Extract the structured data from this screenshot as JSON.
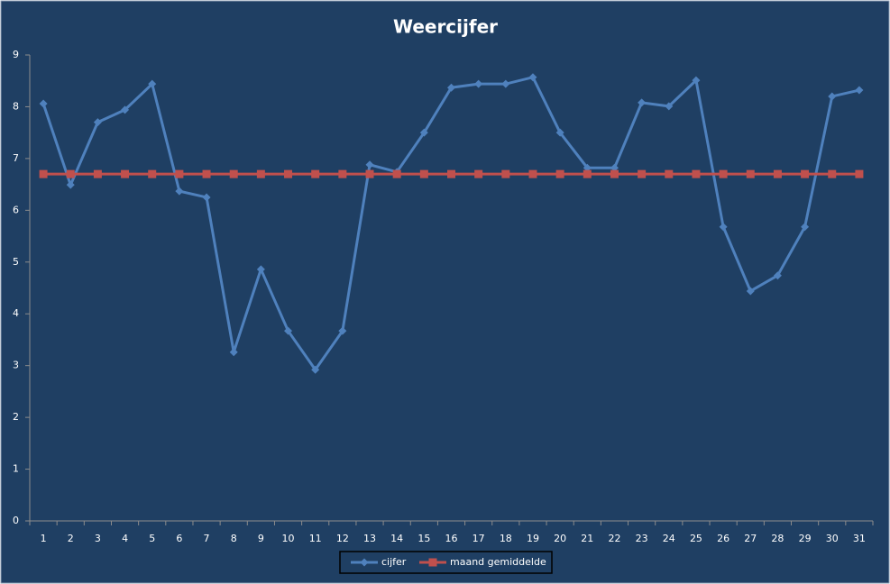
{
  "chart_data": {
    "type": "line",
    "title": "Weercijfer",
    "categories": [
      "1",
      "2",
      "3",
      "4",
      "5",
      "6",
      "7",
      "8",
      "9",
      "10",
      "11",
      "12",
      "13",
      "14",
      "15",
      "16",
      "17",
      "18",
      "19",
      "20",
      "21",
      "22",
      "23",
      "24",
      "25",
      "26",
      "27",
      "28",
      "29",
      "30",
      "31"
    ],
    "series": [
      {
        "name": "cijfer",
        "color": "#4f81bd",
        "marker": "diamond",
        "values": [
          8.06,
          6.49,
          7.7,
          7.94,
          8.44,
          6.37,
          6.25,
          3.26,
          4.86,
          3.67,
          2.92,
          3.67,
          6.88,
          6.74,
          7.5,
          8.37,
          8.44,
          8.44,
          8.57,
          7.5,
          6.82,
          6.82,
          8.08,
          8.01,
          8.51,
          5.68,
          4.44,
          4.74,
          5.68,
          8.2,
          8.32
        ]
      },
      {
        "name": "maand gemiddelde",
        "color": "#c0504d",
        "marker": "square",
        "values": [
          6.7,
          6.7,
          6.7,
          6.7,
          6.7,
          6.7,
          6.7,
          6.7,
          6.7,
          6.7,
          6.7,
          6.7,
          6.7,
          6.7,
          6.7,
          6.7,
          6.7,
          6.7,
          6.7,
          6.7,
          6.7,
          6.7,
          6.7,
          6.7,
          6.7,
          6.7,
          6.7,
          6.7,
          6.7,
          6.7,
          6.7
        ]
      }
    ],
    "ylim": [
      0,
      9
    ],
    "yticks": [
      0,
      1,
      2,
      3,
      4,
      5,
      6,
      7,
      8,
      9
    ],
    "legend": "bottom"
  }
}
